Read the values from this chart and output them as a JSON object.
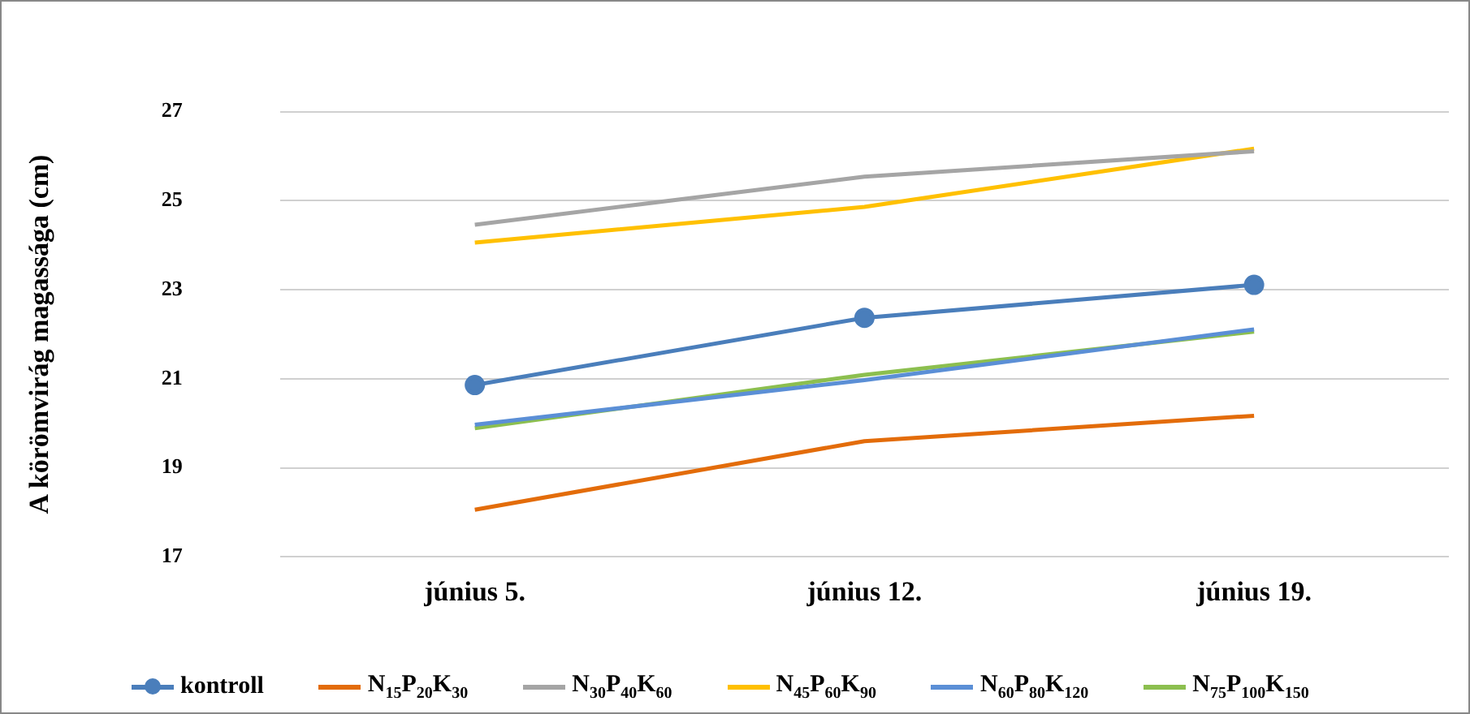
{
  "chart_data": {
    "type": "line",
    "ylabel": "A körömvirág magassága (cm)",
    "categories": [
      "június 5.",
      "június 12.",
      "június 19."
    ],
    "series": [
      {
        "name": "kontroll",
        "color": "#4a7ebb",
        "values": [
          20.86,
          22.37,
          23.11
        ],
        "marker": "circle"
      },
      {
        "name": "N$_{15}$P$_{20}$K$_{30}$",
        "color": "#e36c0a",
        "values": [
          18.06,
          19.6,
          20.17
        ]
      },
      {
        "name": "N$_{30}$P$_{40}$K$_{60}$",
        "color": "#a5a5a5",
        "values": [
          24.46,
          25.54,
          26.11
        ]
      },
      {
        "name": "N$_{45}$P$_{60}$K$_{90}$",
        "color": "#ffc000",
        "values": [
          24.06,
          24.86,
          26.17
        ]
      },
      {
        "name": "N$_{60}$P$_{80}$K$_{120}$",
        "color": "#5b8fd6",
        "values": [
          19.97,
          20.97,
          22.11
        ]
      },
      {
        "name": "N$_{75}$P$_{100}$K$_{150}$",
        "color": "#8cbf4f",
        "values": [
          19.89,
          21.09,
          22.06
        ]
      }
    ],
    "ylim": [
      17,
      27
    ],
    "yticks": [
      17,
      19,
      21,
      23,
      25,
      27
    ],
    "grid": "y",
    "legend": "bottom",
    "marker": "none"
  }
}
